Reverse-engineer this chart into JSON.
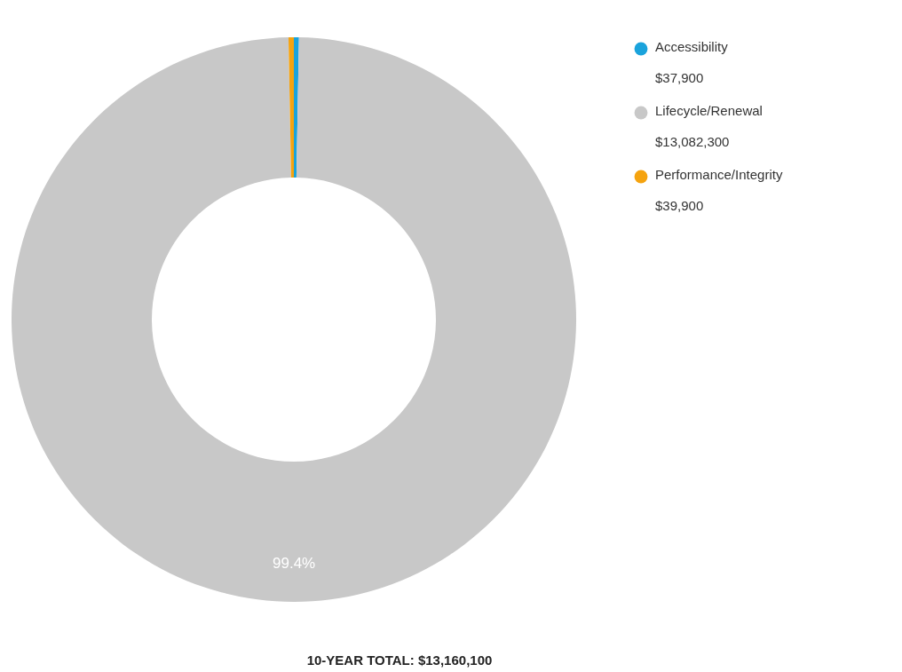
{
  "chart_data": {
    "type": "donut",
    "categories": [
      "Accessibility",
      "Lifecycle/Renewal",
      "Performance/Integrity"
    ],
    "values": [
      37900,
      13082300,
      39900
    ],
    "colors": [
      "#1aa3dc",
      "#c8c8c8",
      "#f5a30f"
    ],
    "value_labels": [
      "$37,900",
      "$13,082,300",
      "$39,900"
    ],
    "legend": "top right",
    "annotations": [
      {
        "text": "99.4%",
        "x": "Lifecycle/Renewal"
      },
      "10-YEAR TOTAL: $13,160,100"
    ]
  }
}
